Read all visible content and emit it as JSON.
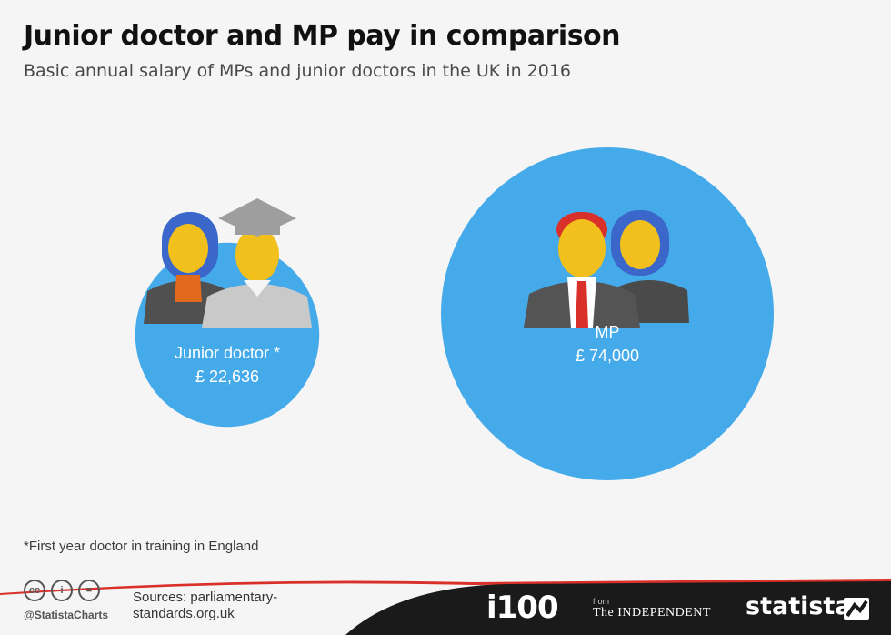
{
  "title": "Junior doctor and MP pay in comparison",
  "subtitle": "Basic annual salary of MPs and junior doctors in the UK in 2016",
  "chart_data": {
    "type": "bubble",
    "title": "Junior doctor and MP pay in comparison",
    "subtitle": "Basic annual salary of MPs and junior doctors in the UK in 2016",
    "categories": [
      "Junior doctor *",
      "MP"
    ],
    "values": [
      22636,
      74000
    ],
    "value_labels": [
      "£ 22,636",
      "£ 74,000"
    ],
    "unit": "GBP"
  },
  "colors": {
    "bubble": "#45aaea",
    "label_text": "#ffffff",
    "footer_bg": "#1a1a1a",
    "footer_accent": "#d9302a"
  },
  "footnote": "*First year doctor in training in England",
  "footer": {
    "license_icons": [
      "cc-icon",
      "by-icon",
      "nd-icon"
    ],
    "license_glyphs": [
      "cc",
      "i",
      "="
    ],
    "handle": "@StatistaCharts",
    "sources": "Sources: parliamentary-standards.org.uk",
    "brand_i100": "i100",
    "brand_from": "from",
    "brand_independent": "The INDEPENDENT",
    "brand_statista": "statista"
  }
}
